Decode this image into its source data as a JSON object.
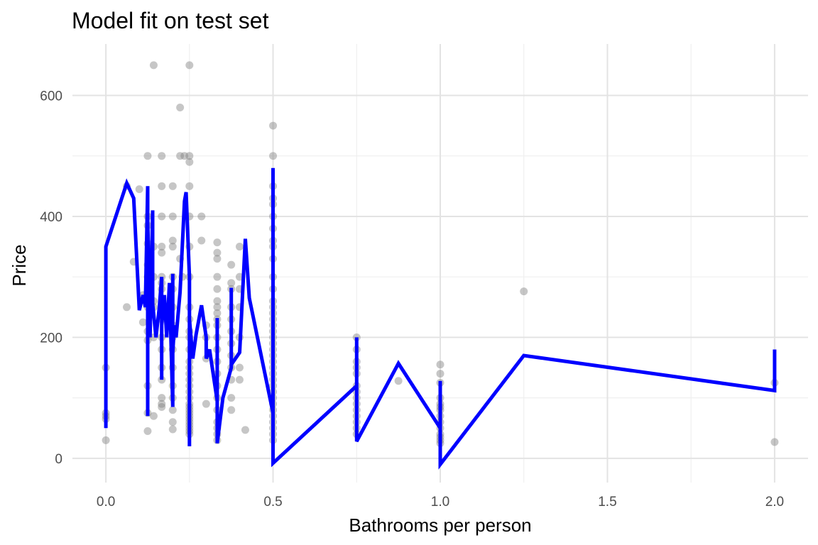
{
  "chart_data": {
    "type": "scatter",
    "title": "Model fit on test set",
    "xlabel": "Bathrooms per person",
    "ylabel": "Price",
    "xlim": [
      -0.1,
      2.1
    ],
    "ylim": [
      -40,
      685
    ],
    "x_ticks": [
      0.0,
      0.5,
      1.0,
      1.5,
      2.0
    ],
    "x_tick_labels": [
      "0.0",
      "0.5",
      "1.0",
      "1.5",
      "2.0"
    ],
    "y_ticks": [
      0,
      200,
      400,
      600
    ],
    "y_tick_labels": [
      "0",
      "200",
      "400",
      "600"
    ],
    "grid": true,
    "legend": "none",
    "colors": {
      "points": "#808080",
      "fit_line": "#0000ff"
    },
    "series": [
      {
        "kind": "points",
        "x": [
          0.0,
          0.0,
          0.0,
          0.0,
          0.0,
          0.0625,
          0.0625,
          0.0833,
          0.1,
          0.111,
          0.111,
          0.125,
          0.125,
          0.125,
          0.125,
          0.125,
          0.125,
          0.125,
          0.125,
          0.125,
          0.125,
          0.125,
          0.125,
          0.143,
          0.143,
          0.143,
          0.143,
          0.143,
          0.143,
          0.143,
          0.167,
          0.167,
          0.167,
          0.167,
          0.167,
          0.167,
          0.167,
          0.167,
          0.167,
          0.167,
          0.167,
          0.167,
          0.167,
          0.167,
          0.167,
          0.167,
          0.167,
          0.2,
          0.2,
          0.2,
          0.2,
          0.2,
          0.2,
          0.2,
          0.2,
          0.2,
          0.2,
          0.2,
          0.2,
          0.2,
          0.2,
          0.2,
          0.2,
          0.222,
          0.222,
          0.222,
          0.229,
          0.235,
          0.25,
          0.25,
          0.25,
          0.25,
          0.25,
          0.25,
          0.25,
          0.25,
          0.25,
          0.25,
          0.25,
          0.25,
          0.25,
          0.25,
          0.25,
          0.25,
          0.25,
          0.25,
          0.25,
          0.25,
          0.25,
          0.25,
          0.25,
          0.25,
          0.25,
          0.25,
          0.25,
          0.25,
          0.25,
          0.25,
          0.286,
          0.286,
          0.3,
          0.3,
          0.3,
          0.3,
          0.333,
          0.333,
          0.333,
          0.333,
          0.333,
          0.333,
          0.333,
          0.333,
          0.333,
          0.333,
          0.333,
          0.333,
          0.333,
          0.333,
          0.333,
          0.333,
          0.333,
          0.333,
          0.333,
          0.333,
          0.333,
          0.375,
          0.375,
          0.375,
          0.375,
          0.375,
          0.375,
          0.375,
          0.375,
          0.375,
          0.375,
          0.375,
          0.375,
          0.4,
          0.4,
          0.4,
          0.4,
          0.4,
          0.4,
          0.4,
          0.417,
          0.5,
          0.5,
          0.5,
          0.5,
          0.5,
          0.5,
          0.5,
          0.5,
          0.5,
          0.5,
          0.5,
          0.5,
          0.5,
          0.5,
          0.5,
          0.5,
          0.5,
          0.5,
          0.5,
          0.5,
          0.5,
          0.5,
          0.5,
          0.5,
          0.5,
          0.5,
          0.5,
          0.5,
          0.5,
          0.5,
          0.5,
          0.5,
          0.5,
          0.5,
          0.5,
          0.5,
          0.75,
          0.75,
          0.75,
          0.75,
          0.75,
          0.75,
          0.75,
          0.75,
          0.75,
          0.75,
          0.75,
          0.75,
          0.75,
          0.75,
          0.875,
          1.0,
          1.0,
          1.0,
          1.0,
          1.0,
          1.0,
          1.0,
          1.0,
          1.0,
          1.0,
          1.0,
          1.0,
          1.0,
          1.0,
          1.25,
          2.0,
          2.0
        ],
        "y": [
          150,
          75,
          70,
          65,
          30,
          450,
          250,
          325,
          445,
          270,
          225,
          500,
          400,
          385,
          320,
          300,
          250,
          210,
          195,
          120,
          75,
          45,
          355,
          650,
          350,
          300,
          260,
          250,
          200,
          70,
          500,
          450,
          400,
          350,
          340,
          300,
          280,
          250,
          230,
          200,
          180,
          150,
          130,
          100,
          90,
          85,
          290,
          450,
          400,
          360,
          350,
          300,
          280,
          250,
          220,
          200,
          180,
          150,
          120,
          100,
          80,
          60,
          48,
          580,
          500,
          330,
          300,
          500,
          650,
          500,
          490,
          450,
          400,
          350,
          300,
          250,
          230,
          210,
          200,
          180,
          160,
          150,
          140,
          130,
          120,
          110,
          100,
          90,
          85,
          80,
          75,
          70,
          65,
          60,
          55,
          50,
          45,
          40,
          400,
          360,
          220,
          200,
          165,
          90,
          357,
          340,
          330,
          300,
          280,
          260,
          250,
          240,
          230,
          220,
          200,
          180,
          160,
          140,
          120,
          100,
          80,
          60,
          50,
          40,
          30,
          320,
          290,
          280,
          250,
          230,
          210,
          190,
          170,
          150,
          130,
          100,
          80,
          350,
          300,
          280,
          250,
          200,
          150,
          130,
          47,
          550,
          500,
          450,
          430,
          420,
          400,
          380,
          360,
          350,
          330,
          300,
          280,
          260,
          250,
          240,
          230,
          220,
          210,
          200,
          190,
          180,
          170,
          160,
          150,
          140,
          130,
          120,
          110,
          100,
          90,
          80,
          70,
          60,
          50,
          40,
          30,
          200,
          180,
          160,
          150,
          140,
          120,
          110,
          100,
          90,
          80,
          70,
          60,
          50,
          40,
          128,
          155,
          140,
          125,
          100,
          90,
          85,
          80,
          70,
          60,
          50,
          40,
          35,
          30,
          25,
          276,
          125,
          27
        ]
      },
      {
        "kind": "line",
        "x": [
          0.0,
          0.0,
          0.0625,
          0.0833,
          0.1,
          0.111,
          0.118,
          0.125,
          0.125,
          0.125,
          0.132,
          0.14,
          0.14,
          0.15,
          0.16,
          0.167,
          0.167,
          0.167,
          0.175,
          0.182,
          0.19,
          0.2,
          0.2,
          0.2,
          0.205,
          0.21,
          0.222,
          0.235,
          0.24,
          0.25,
          0.25,
          0.25,
          0.26,
          0.27,
          0.286,
          0.3,
          0.3,
          0.31,
          0.333,
          0.333,
          0.333,
          0.35,
          0.375,
          0.375,
          0.375,
          0.4,
          0.417,
          0.429,
          0.5,
          0.5,
          0.5,
          0.75,
          0.75,
          0.75,
          0.875,
          1.0,
          1.0,
          1.0,
          1.25,
          2.0,
          2.0
        ],
        "y": [
          50,
          350,
          455,
          430,
          245,
          270,
          250,
          450,
          70,
          400,
          200,
          410,
          255,
          200,
          250,
          300,
          130,
          220,
          270,
          200,
          290,
          85,
          305,
          175,
          220,
          200,
          275,
          425,
          440,
          300,
          20,
          230,
          165,
          205,
          253,
          200,
          165,
          180,
          95,
          232,
          25,
          100,
          150,
          282,
          155,
          175,
          363,
          265,
          75,
          480,
          -8,
          120,
          200,
          28,
          157,
          50,
          128,
          -10,
          170,
          112,
          180
        ]
      }
    ]
  }
}
